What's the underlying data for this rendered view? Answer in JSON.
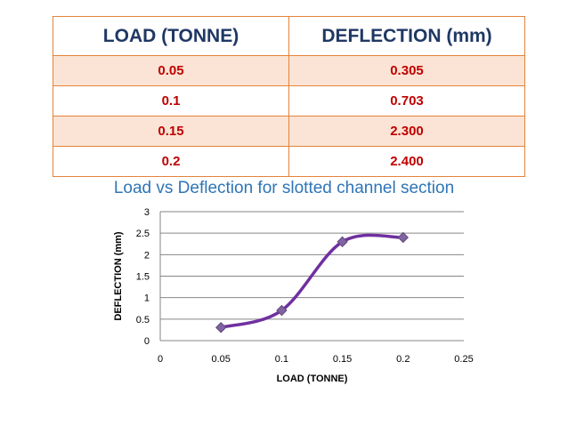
{
  "table": {
    "headers": [
      "LOAD (TONNE)",
      "DEFLECTION (mm)"
    ],
    "rows": [
      [
        "0.05",
        "0.305"
      ],
      [
        "0.1",
        "0.703"
      ],
      [
        "0.15",
        "2.300"
      ],
      [
        "0.2",
        "2.400"
      ]
    ]
  },
  "colors": {
    "header_text": "#1f3864",
    "cell_text": "#c00000",
    "border": "#e3843c",
    "band": "#fbe4d5",
    "title": "#2e75b6",
    "series": "#7030a0"
  },
  "chart_data": {
    "type": "scatter",
    "title": "Load vs Deflection for slotted channel section",
    "xlabel": "LOAD (TONNE)",
    "ylabel": "DEFLECTION (mm)",
    "xlim": [
      0,
      0.25
    ],
    "ylim": [
      0,
      3
    ],
    "xticks": [
      "0",
      "0.05",
      "0.1",
      "0.15",
      "0.2",
      "0.25"
    ],
    "yticks": [
      "0",
      "0.5",
      "1",
      "1.5",
      "2",
      "2.5",
      "3"
    ],
    "grid": true,
    "smoothed_line": true,
    "marker": "diamond",
    "series": [
      {
        "x": [
          0.05,
          0.1,
          0.15,
          0.2
        ],
        "y": [
          0.305,
          0.703,
          2.3,
          2.4
        ]
      }
    ]
  }
}
